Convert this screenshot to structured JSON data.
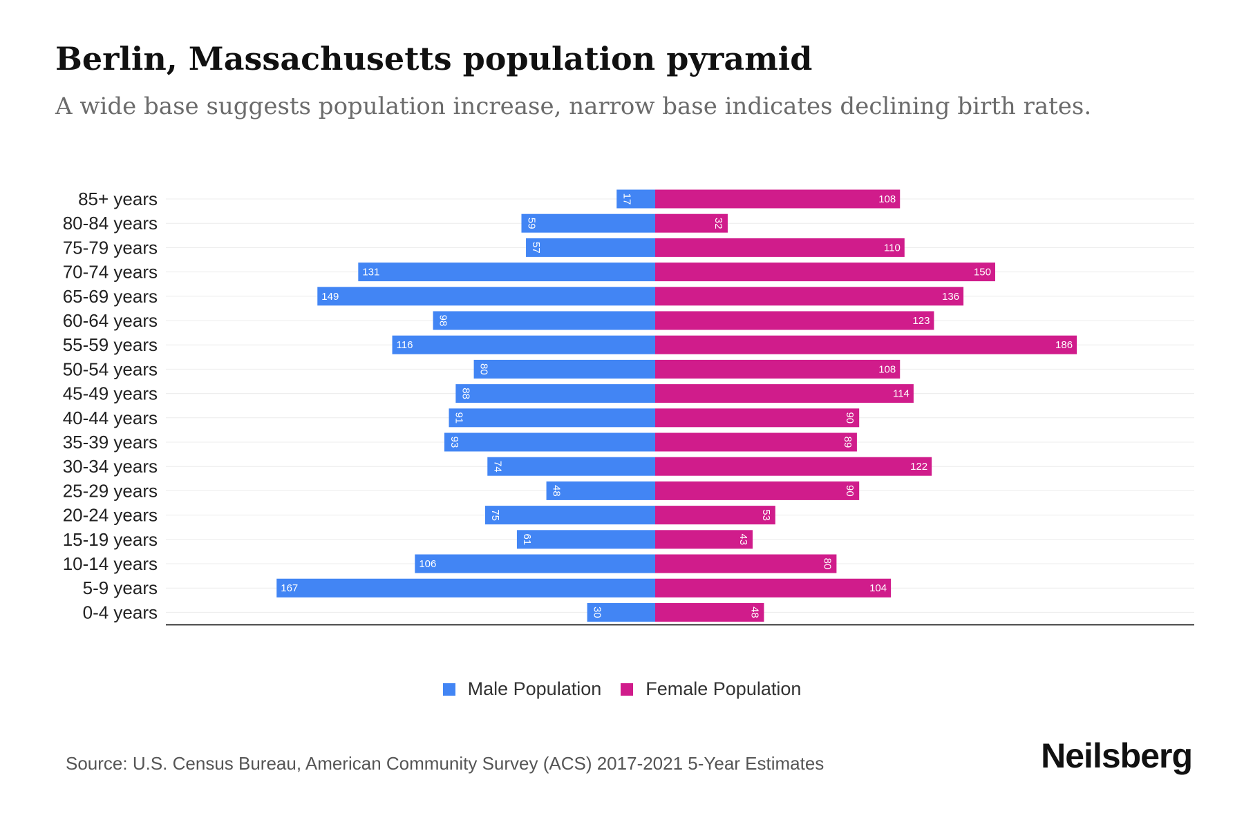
{
  "title": "Berlin, Massachusetts population pyramid",
  "subtitle": "A wide base suggests population increase, narrow base indicates declining birth rates.",
  "source": "Source: U.S. Census Bureau, American Community Survey (ACS) 2017-2021 5-Year Estimates",
  "brand": "Neilsberg",
  "colors": {
    "male": "#4285F4",
    "female": "#D01C8B"
  },
  "chart_data": {
    "type": "bar",
    "orientation": "horizontal-pyramid",
    "title": "Berlin, Massachusetts population pyramid",
    "categories": [
      "85+ years",
      "80-84 years",
      "75-79 years",
      "70-74 years",
      "65-69 years",
      "60-64 years",
      "55-59 years",
      "50-54 years",
      "45-49 years",
      "40-44 years",
      "35-39 years",
      "30-34 years",
      "25-29 years",
      "20-24 years",
      "15-19 years",
      "10-14 years",
      "5-9 years",
      "0-4 years"
    ],
    "series": [
      {
        "name": "Male Population",
        "values": [
          17,
          59,
          57,
          131,
          149,
          98,
          116,
          80,
          88,
          91,
          93,
          74,
          48,
          75,
          61,
          106,
          167,
          30
        ]
      },
      {
        "name": "Female Population",
        "values": [
          108,
          32,
          110,
          150,
          136,
          123,
          186,
          108,
          114,
          90,
          89,
          122,
          90,
          53,
          43,
          80,
          104,
          48
        ]
      }
    ],
    "xlim": [
      -187,
      206
    ],
    "grid": true,
    "legend": "bottom-center"
  }
}
